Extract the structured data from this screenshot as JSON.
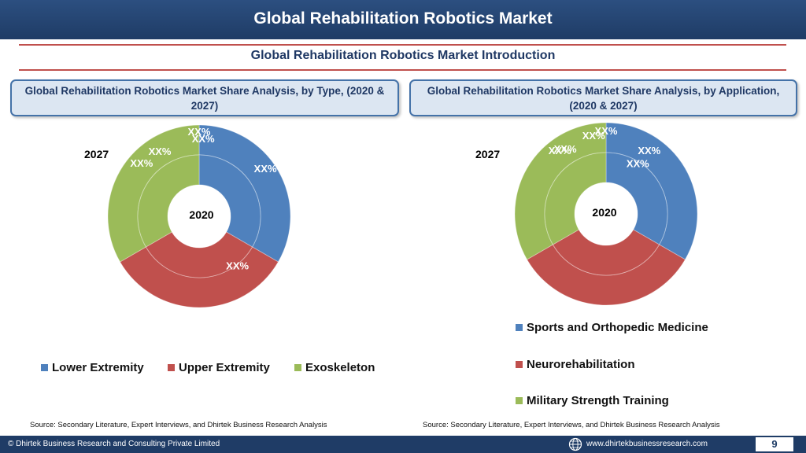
{
  "header": {
    "title": "Global Rehabilitation Robotics Market"
  },
  "subtitle": "Global Rehabilitation Robotics Market  Introduction",
  "panels": {
    "left_title": "Global Rehabilitation Robotics Market  Share Analysis, by Type, (2020 & 2027)",
    "right_title": "Global Rehabilitation Robotics Market  Share Analysis, by Application, (2020 & 2027)"
  },
  "colors": {
    "blue": "#4f81bd",
    "red": "#c0504d",
    "green": "#9bbb59",
    "header": "#1f3c66"
  },
  "chart_data": [
    {
      "type": "donut",
      "outer_ring_label": "2027",
      "inner_ring_label": "2020",
      "categories": [
        "Lower Extremity",
        "Upper Extremity",
        "Exoskeleton"
      ],
      "series": [
        {
          "name": "2027",
          "values": [
            33.3,
            33.3,
            33.3
          ],
          "labels": [
            "XX%",
            "XX%",
            "XX%"
          ]
        },
        {
          "name": "2020",
          "values": [
            33.3,
            33.3,
            33.3
          ],
          "labels": [
            "XX%",
            "XX%",
            "XX%"
          ]
        }
      ],
      "legend": {
        "position": "bottom"
      }
    },
    {
      "type": "donut",
      "outer_ring_label": "2027",
      "inner_ring_label": "2020",
      "categories": [
        "Sports and Orthopedic Medicine",
        "Neurorehabilitation",
        "Military Strength Training"
      ],
      "series": [
        {
          "name": "2027",
          "values": [
            33.3,
            33.3,
            33.3
          ],
          "labels": [
            "XX%",
            "XX%",
            "XX%"
          ]
        },
        {
          "name": "2020",
          "values": [
            33.3,
            33.3,
            33.3
          ],
          "labels": [
            "XX%",
            "XX%",
            "XX%"
          ]
        }
      ],
      "legend": {
        "position": "bottom-right"
      }
    }
  ],
  "legend_left": [
    "Lower Extremity",
    "Upper Extremity",
    "Exoskeleton"
  ],
  "legend_right": [
    "Sports and Orthopedic Medicine",
    "Neurorehabilitation",
    "Military Strength Training"
  ],
  "sources": {
    "left": "Source: Secondary Literature, Expert Interviews, and Dhirtek Business Research Analysis",
    "right": "Source: Secondary Literature, Expert Interviews, and Dhirtek Business Research Analysis"
  },
  "footer": {
    "copyright": "© Dhirtek Business Research and Consulting Private Limited",
    "website": "www.dhirtekbusinessresearch.com",
    "page_number": "9",
    "globe_icon": "globe-icon"
  }
}
